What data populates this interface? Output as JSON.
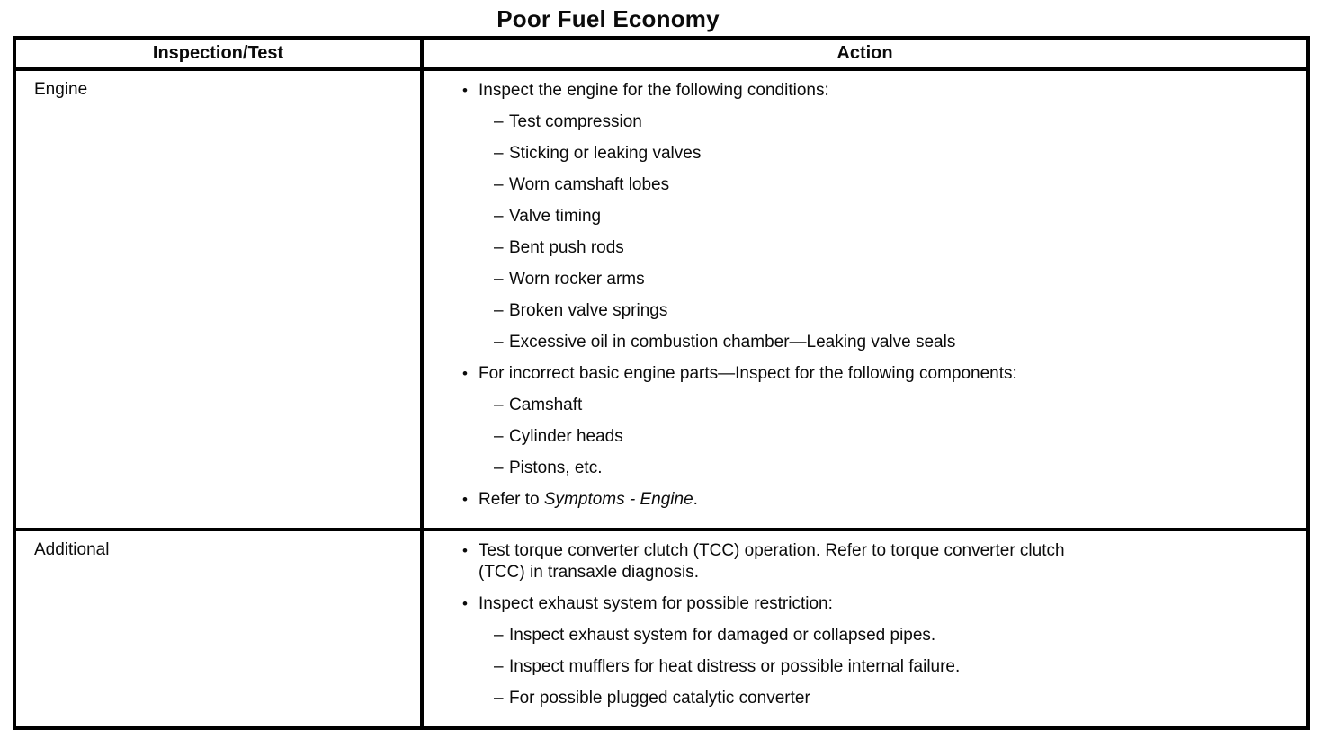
{
  "title": "Poor Fuel Economy",
  "glyphs": {
    "bullet": "•",
    "dash": "–"
  },
  "table": {
    "headers": [
      "Inspection/Test",
      "Action"
    ],
    "rows": [
      {
        "inspection": "Engine",
        "actions": [
          {
            "segments": [
              {
                "text": "Inspect the engine for the following conditions:",
                "italic": false
              }
            ],
            "sub_items": [
              "Test compression",
              "Sticking or leaking valves",
              "Worn camshaft lobes",
              "Valve timing",
              "Bent push rods",
              "Worn rocker arms",
              "Broken valve springs",
              "Excessive oil in combustion chamber—Leaking valve seals"
            ]
          },
          {
            "segments": [
              {
                "text": "For incorrect basic engine parts—Inspect for the following components:",
                "italic": false
              }
            ],
            "sub_items": [
              "Camshaft",
              "Cylinder heads",
              "Pistons, etc."
            ]
          },
          {
            "segments": [
              {
                "text": "Refer to ",
                "italic": false
              },
              {
                "text": "Symptoms - Engine",
                "italic": true
              },
              {
                "text": ".",
                "italic": false
              }
            ],
            "sub_items": []
          }
        ]
      },
      {
        "inspection": "Additional",
        "actions": [
          {
            "segments": [
              {
                "text": "Test torque converter clutch (TCC) operation. Refer to torque converter clutch (TCC) in transaxle diagnosis.",
                "italic": false
              }
            ],
            "sub_items": []
          },
          {
            "segments": [
              {
                "text": "Inspect exhaust system for possible restriction:",
                "italic": false
              }
            ],
            "sub_items": [
              "Inspect exhaust system for damaged or collapsed pipes.",
              "Inspect mufflers for heat distress or possible internal failure.",
              "For possible plugged catalytic converter"
            ]
          }
        ]
      }
    ]
  }
}
